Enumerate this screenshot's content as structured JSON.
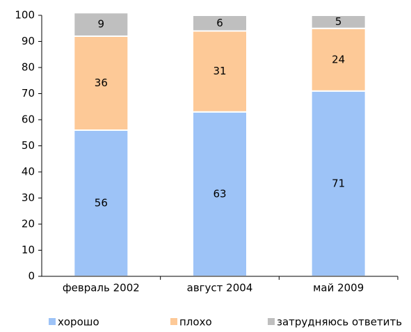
{
  "chart_data": {
    "type": "stacked_bar",
    "categories": [
      "февраль 2002",
      "август 2004",
      "май 2009"
    ],
    "series": [
      {
        "name": "хорошо",
        "color": "#9dc3f7",
        "values": [
          56,
          63,
          71
        ]
      },
      {
        "name": "плохо",
        "color": "#fdc997",
        "values": [
          36,
          31,
          24
        ]
      },
      {
        "name": "затрудняюсь ответить",
        "color": "#bfbfbf",
        "values": [
          9,
          6,
          5
        ]
      }
    ],
    "ylim": [
      0,
      100
    ],
    "yticks": [
      0,
      10,
      20,
      30,
      40,
      50,
      60,
      70,
      80,
      90,
      100
    ],
    "legend": "bottom"
  }
}
